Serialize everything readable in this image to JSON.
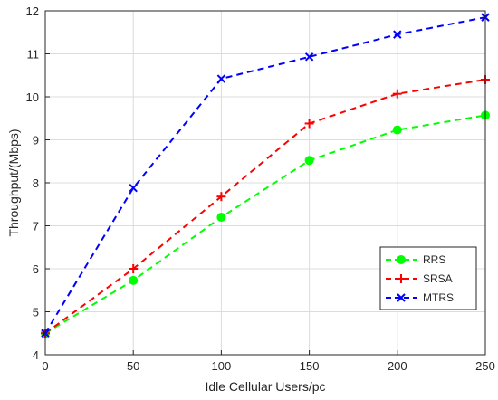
{
  "chart_data": {
    "type": "line",
    "xlabel": "Idle Cellular Users/pc",
    "ylabel": "Throughput/(Mbps)",
    "xlim": [
      0,
      250
    ],
    "ylim": [
      4,
      12
    ],
    "xticks": [
      0,
      50,
      100,
      150,
      200,
      250
    ],
    "yticks": [
      4,
      5,
      6,
      7,
      8,
      9,
      10,
      11,
      12
    ],
    "grid": true,
    "legend_position": "bottom-right",
    "x": [
      0,
      50,
      100,
      150,
      200,
      250
    ],
    "series": [
      {
        "name": "RRS",
        "values": [
          4.5,
          5.73,
          7.2,
          8.52,
          9.23,
          9.57
        ],
        "color": "#00ff00",
        "marker": "circle"
      },
      {
        "name": "SRSA",
        "values": [
          4.5,
          6.0,
          7.68,
          9.38,
          10.07,
          10.4
        ],
        "color": "#ff0000",
        "marker": "plus"
      },
      {
        "name": "MTRS",
        "values": [
          4.5,
          7.88,
          10.42,
          10.93,
          11.45,
          11.85
        ],
        "color": "#0000ff",
        "marker": "x"
      }
    ]
  }
}
